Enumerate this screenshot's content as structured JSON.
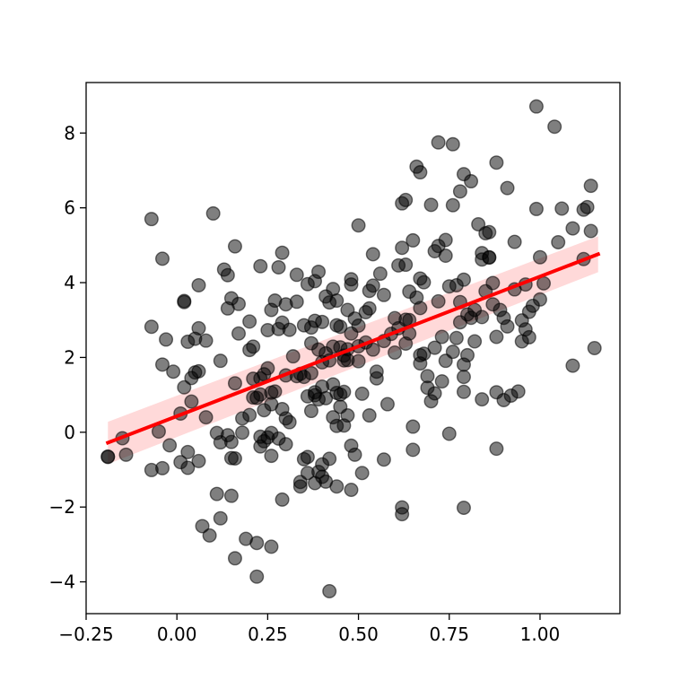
{
  "chart_data": {
    "type": "scatter",
    "title": "",
    "xlabel": "",
    "ylabel": "",
    "xlim": [
      -0.25,
      1.22
    ],
    "ylim": [
      -4.85,
      9.35
    ],
    "xticks": [
      -0.25,
      0.0,
      0.25,
      0.5,
      0.75,
      1.0
    ],
    "xtick_labels": [
      "−0.25",
      "0.00",
      "0.25",
      "0.50",
      "0.75",
      "1.00"
    ],
    "yticks": [
      -4,
      -2,
      0,
      2,
      4,
      6,
      8
    ],
    "ytick_labels": [
      "−4",
      "−2",
      "0",
      "2",
      "4",
      "6",
      "8"
    ],
    "grid": false,
    "point_color": "#000000",
    "point_alpha": 0.5,
    "line_color": "#ff0000",
    "band_color": "#ff0000",
    "band_alpha": 0.15,
    "regression": {
      "x": [
        -0.19,
        1.16
      ],
      "y": [
        -0.28,
        4.76
      ],
      "band_lower": [
        -0.85,
        4.28
      ],
      "band_upper": [
        0.28,
        5.24
      ]
    },
    "points": [
      [
        -0.19,
        -0.66
      ],
      [
        -0.15,
        -0.16
      ],
      [
        -0.14,
        -0.6
      ],
      [
        -0.07,
        5.7
      ],
      [
        -0.07,
        2.82
      ],
      [
        -0.07,
        -1.01
      ],
      [
        -0.05,
        0.02
      ],
      [
        -0.04,
        -0.96
      ],
      [
        -0.04,
        1.81
      ],
      [
        -0.04,
        4.64
      ],
      [
        -0.03,
        2.48
      ],
      [
        -0.02,
        -0.35
      ],
      [
        -0.01,
        1.62
      ],
      [
        0.01,
        0.5
      ],
      [
        0.01,
        -0.8
      ],
      [
        0.02,
        3.51
      ],
      [
        0.02,
        3.48
      ],
      [
        0.02,
        1.2
      ],
      [
        0.03,
        2.42
      ],
      [
        0.03,
        -0.53
      ],
      [
        0.03,
        -0.95
      ],
      [
        0.04,
        0.82
      ],
      [
        0.04,
        1.45
      ],
      [
        0.05,
        1.6
      ],
      [
        0.05,
        2.5
      ],
      [
        0.06,
        2.78
      ],
      [
        0.06,
        3.93
      ],
      [
        0.06,
        -0.77
      ],
      [
        0.06,
        1.63
      ],
      [
        0.07,
        -2.51
      ],
      [
        0.08,
        2.45
      ],
      [
        0.08,
        0.4
      ],
      [
        0.09,
        -2.76
      ],
      [
        0.1,
        5.85
      ],
      [
        0.11,
        -1.65
      ],
      [
        0.11,
        -0.02
      ],
      [
        0.12,
        -0.27
      ],
      [
        0.12,
        -2.3
      ],
      [
        0.12,
        1.91
      ],
      [
        0.13,
        4.35
      ],
      [
        0.14,
        4.2
      ],
      [
        0.14,
        -0.08
      ],
      [
        0.14,
        3.31
      ],
      [
        0.15,
        -1.7
      ],
      [
        0.15,
        -0.26
      ],
      [
        0.15,
        3.58
      ],
      [
        0.15,
        -0.69
      ],
      [
        0.16,
        -3.37
      ],
      [
        0.16,
        1.31
      ],
      [
        0.16,
        -0.7
      ],
      [
        0.16,
        4.97
      ],
      [
        0.17,
        3.43
      ],
      [
        0.17,
        2.64
      ],
      [
        0.18,
        0.37
      ],
      [
        0.18,
        -0.01
      ],
      [
        0.19,
        -2.85
      ],
      [
        0.2,
        2.2
      ],
      [
        0.2,
        0.46
      ],
      [
        0.2,
        2.96
      ],
      [
        0.21,
        2.29
      ],
      [
        0.21,
        1.43
      ],
      [
        0.21,
        0.93
      ],
      [
        0.22,
        -3.86
      ],
      [
        0.22,
        -2.96
      ],
      [
        0.22,
        0.92
      ],
      [
        0.23,
        4.44
      ],
      [
        0.23,
        1.44
      ],
      [
        0.23,
        1.01
      ],
      [
        0.23,
        -0.12
      ],
      [
        0.23,
        -0.38
      ],
      [
        0.24,
        0.59
      ],
      [
        0.24,
        -0.24
      ],
      [
        0.24,
        1.55
      ],
      [
        0.25,
        -0.14
      ],
      [
        0.25,
        2.73
      ],
      [
        0.25,
        1.71
      ],
      [
        0.26,
        -0.02
      ],
      [
        0.26,
        -3.06
      ],
      [
        0.26,
        -0.63
      ],
      [
        0.26,
        3.27
      ],
      [
        0.26,
        0.75
      ],
      [
        0.26,
        1.06
      ],
      [
        0.27,
        3.52
      ],
      [
        0.27,
        1.09
      ],
      [
        0.28,
        -0.17
      ],
      [
        0.28,
        2.76
      ],
      [
        0.28,
        4.41
      ],
      [
        0.29,
        -1.8
      ],
      [
        0.29,
        0.62
      ],
      [
        0.29,
        2.93
      ],
      [
        0.29,
        4.8
      ],
      [
        0.3,
        3.42
      ],
      [
        0.3,
        1.52
      ],
      [
        0.3,
        -0.32
      ],
      [
        0.3,
        0.37
      ],
      [
        0.31,
        2.74
      ],
      [
        0.31,
        0.27
      ],
      [
        0.32,
        2.03
      ],
      [
        0.33,
        1.5
      ],
      [
        0.33,
        4.21
      ],
      [
        0.33,
        3.49
      ],
      [
        0.34,
        -1.33
      ],
      [
        0.34,
        1.56
      ],
      [
        0.34,
        -1.45
      ],
      [
        0.35,
        1.48
      ],
      [
        0.35,
        -0.72
      ],
      [
        0.35,
        2.86
      ],
      [
        0.36,
        3.96
      ],
      [
        0.36,
        -1.09
      ],
      [
        0.36,
        -0.66
      ],
      [
        0.36,
        0.96
      ],
      [
        0.37,
        0.57
      ],
      [
        0.37,
        2.38
      ],
      [
        0.37,
        2.8
      ],
      [
        0.37,
        1.58
      ],
      [
        0.38,
        1.07
      ],
      [
        0.38,
        -1.36
      ],
      [
        0.38,
        4.04
      ],
      [
        0.38,
        2.98
      ],
      [
        0.38,
        0.99
      ],
      [
        0.39,
        2.21
      ],
      [
        0.39,
        0.88
      ],
      [
        0.39,
        4.29
      ],
      [
        0.39,
        -1.06
      ],
      [
        0.4,
        -1.19
      ],
      [
        0.4,
        1.87
      ],
      [
        0.4,
        1.22
      ],
      [
        0.4,
        2.95
      ],
      [
        0.4,
        -0.86
      ],
      [
        0.41,
        -1.32
      ],
      [
        0.41,
        3.63
      ],
      [
        0.41,
        2.11
      ],
      [
        0.41,
        0.91
      ],
      [
        0.42,
        -4.25
      ],
      [
        0.42,
        -0.71
      ],
      [
        0.42,
        3.47
      ],
      [
        0.42,
        1.92
      ],
      [
        0.43,
        2.29
      ],
      [
        0.43,
        1.28
      ],
      [
        0.43,
        3.83
      ],
      [
        0.43,
        0.4
      ],
      [
        0.44,
        2.86
      ],
      [
        0.44,
        1.05
      ],
      [
        0.44,
        -1.45
      ],
      [
        0.44,
        0.17
      ],
      [
        0.44,
        3.52
      ],
      [
        0.45,
        2.82
      ],
      [
        0.45,
        0.68
      ],
      [
        0.45,
        1.01
      ],
      [
        0.45,
        2.27
      ],
      [
        0.46,
        1.08
      ],
      [
        0.46,
        0.18
      ],
      [
        0.46,
        1.92
      ],
      [
        0.46,
        2.05
      ],
      [
        0.47,
        3.27
      ],
      [
        0.47,
        2.22
      ],
      [
        0.47,
        1.93
      ],
      [
        0.47,
        0.45
      ],
      [
        0.48,
        -1.54
      ],
      [
        0.48,
        3.95
      ],
      [
        0.48,
        4.09
      ],
      [
        0.48,
        2.64
      ],
      [
        0.48,
        -0.36
      ],
      [
        0.49,
        3.04
      ],
      [
        0.49,
        -0.6
      ],
      [
        0.5,
        2.3
      ],
      [
        0.5,
        5.53
      ],
      [
        0.5,
        2.85
      ],
      [
        0.5,
        1.9
      ],
      [
        0.51,
        1.03
      ],
      [
        0.51,
        -1.09
      ],
      [
        0.52,
        3.21
      ],
      [
        0.52,
        2.4
      ],
      [
        0.53,
        3.78
      ],
      [
        0.53,
        0.45
      ],
      [
        0.53,
        3.31
      ],
      [
        0.54,
        4.76
      ],
      [
        0.54,
        3.92
      ],
      [
        0.54,
        2.21
      ],
      [
        0.55,
        1.44
      ],
      [
        0.55,
        1.62
      ],
      [
        0.56,
        4.24
      ],
      [
        0.57,
        3.67
      ],
      [
        0.57,
        -0.73
      ],
      [
        0.57,
        2.44
      ],
      [
        0.58,
        0.75
      ],
      [
        0.59,
        2.63
      ],
      [
        0.6,
        2.13
      ],
      [
        0.6,
        3.05
      ],
      [
        0.61,
        4.46
      ],
      [
        0.61,
        2.78
      ],
      [
        0.62,
        4.93
      ],
      [
        0.62,
        -2.19
      ],
      [
        0.62,
        -2.01
      ],
      [
        0.62,
        6.12
      ],
      [
        0.63,
        6.21
      ],
      [
        0.63,
        3.01
      ],
      [
        0.63,
        4.48
      ],
      [
        0.63,
        2.37
      ],
      [
        0.64,
        2.64
      ],
      [
        0.64,
        3.0
      ],
      [
        0.64,
        3.76
      ],
      [
        0.65,
        0.15
      ],
      [
        0.65,
        -0.47
      ],
      [
        0.65,
        5.13
      ],
      [
        0.66,
        7.1
      ],
      [
        0.66,
        3.6
      ],
      [
        0.67,
        6.95
      ],
      [
        0.67,
        4.11
      ],
      [
        0.67,
        3.32
      ],
      [
        0.67,
        2.06
      ],
      [
        0.67,
        1.84
      ],
      [
        0.68,
        2.1
      ],
      [
        0.68,
        4.01
      ],
      [
        0.69,
        1.19
      ],
      [
        0.69,
        1.5
      ],
      [
        0.7,
        0.83
      ],
      [
        0.7,
        6.08
      ],
      [
        0.71,
        4.84
      ],
      [
        0.71,
        2.26
      ],
      [
        0.71,
        1.04
      ],
      [
        0.72,
        7.75
      ],
      [
        0.72,
        4.98
      ],
      [
        0.72,
        3.5
      ],
      [
        0.73,
        2.55
      ],
      [
        0.73,
        1.36
      ],
      [
        0.74,
        1.91
      ],
      [
        0.74,
        5.14
      ],
      [
        0.74,
        4.72
      ],
      [
        0.75,
        3.9
      ],
      [
        0.75,
        -0.04
      ],
      [
        0.76,
        2.15
      ],
      [
        0.76,
        7.7
      ],
      [
        0.76,
        6.07
      ],
      [
        0.77,
        3.93
      ],
      [
        0.77,
        2.52
      ],
      [
        0.78,
        6.44
      ],
      [
        0.78,
        3.48
      ],
      [
        0.78,
        2.94
      ],
      [
        0.79,
        4.08
      ],
      [
        0.79,
        6.9
      ],
      [
        0.79,
        1.81
      ],
      [
        0.79,
        1.08
      ],
      [
        0.79,
        1.48
      ],
      [
        0.79,
        -2.02
      ],
      [
        0.8,
        2.06
      ],
      [
        0.8,
        3.15
      ],
      [
        0.81,
        6.71
      ],
      [
        0.81,
        3.06
      ],
      [
        0.82,
        2.43
      ],
      [
        0.82,
        3.27
      ],
      [
        0.83,
        5.56
      ],
      [
        0.84,
        4.62
      ],
      [
        0.84,
        0.88
      ],
      [
        0.84,
        3.08
      ],
      [
        0.84,
        4.79
      ],
      [
        0.85,
        3.77
      ],
      [
        0.85,
        5.32
      ],
      [
        0.86,
        4.67
      ],
      [
        0.86,
        5.35
      ],
      [
        0.86,
        4.68
      ],
      [
        0.87,
        3.99
      ],
      [
        0.87,
        3.42
      ],
      [
        0.88,
        -0.44
      ],
      [
        0.88,
        1.07
      ],
      [
        0.88,
        7.21
      ],
      [
        0.88,
        2.55
      ],
      [
        0.89,
        3.27
      ],
      [
        0.9,
        3.06
      ],
      [
        0.9,
        0.86
      ],
      [
        0.91,
        2.83
      ],
      [
        0.91,
        6.53
      ],
      [
        0.92,
        0.98
      ],
      [
        0.93,
        5.09
      ],
      [
        0.93,
        3.82
      ],
      [
        0.94,
        1.09
      ],
      [
        0.95,
        2.43
      ],
      [
        0.95,
        2.99
      ],
      [
        0.96,
        3.95
      ],
      [
        0.96,
        2.75
      ],
      [
        0.97,
        2.54
      ],
      [
        0.97,
        3.22
      ],
      [
        0.98,
        3.38
      ],
      [
        0.99,
        8.71
      ],
      [
        0.99,
        5.97
      ],
      [
        1.0,
        4.68
      ],
      [
        1.0,
        3.55
      ],
      [
        1.01,
        3.98
      ],
      [
        1.04,
        8.17
      ],
      [
        1.05,
        5.08
      ],
      [
        1.06,
        5.98
      ],
      [
        1.09,
        1.78
      ],
      [
        1.09,
        5.45
      ],
      [
        1.12,
        4.63
      ],
      [
        1.12,
        5.95
      ],
      [
        1.13,
        6.02
      ],
      [
        1.14,
        6.59
      ],
      [
        1.14,
        5.38
      ],
      [
        1.15,
        2.25
      ],
      [
        -0.19,
        -0.65
      ]
    ]
  }
}
